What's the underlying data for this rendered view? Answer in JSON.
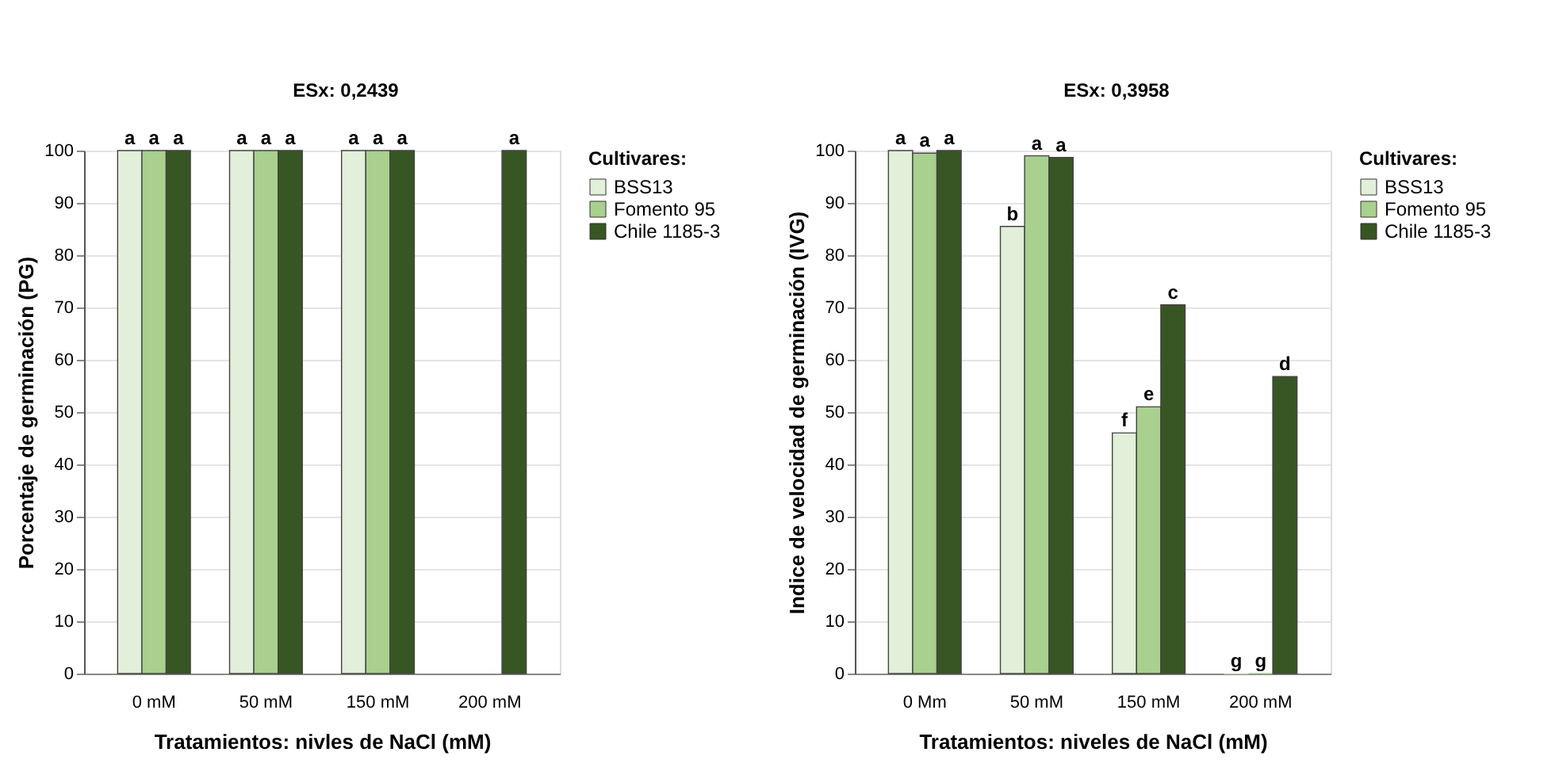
{
  "chart_data": [
    {
      "type": "bar",
      "ylabel": "Porcentaje de germinación  (PG)",
      "xlabel": "Tratamientos: nivles de NaCl (mM)",
      "legend_title": "Cultivares:",
      "legend": "top right",
      "grid": "y",
      "annotations": [
        "ESx: 0,2439"
      ],
      "categories": [
        "0 mM",
        "50 mM",
        "150 mM",
        "200 mM"
      ],
      "ylim": [
        0,
        100
      ],
      "yticks": [
        0,
        10,
        20,
        30,
        40,
        50,
        60,
        70,
        80,
        90,
        100
      ],
      "series": [
        {
          "name": "BSS13",
          "color": "#e2efd9",
          "values": [
            100,
            100,
            100,
            null
          ],
          "value_labels": [
            "a",
            "a",
            "a",
            null
          ]
        },
        {
          "name": "Fomento 95",
          "color": "#a9d08e",
          "values": [
            100,
            100,
            100,
            null
          ],
          "value_labels": [
            "a",
            "a",
            "a",
            null
          ]
        },
        {
          "name": "Chile 1185-3",
          "color": "#375623",
          "values": [
            100,
            100,
            100,
            100
          ],
          "value_labels": [
            "a",
            "a",
            "a",
            "a"
          ]
        }
      ]
    },
    {
      "type": "bar",
      "ylabel": "Indice de velocidad de germinación  (IVG)",
      "xlabel": "Tratamientos: niveles de NaCl (mM)",
      "legend_title": "Cultivares:",
      "legend": "top right",
      "grid": "y",
      "annotations": [
        "ESx: 0,3958"
      ],
      "categories": [
        "0 Mm",
        "50 mM",
        "150 mM",
        "200 mM"
      ],
      "ylim": [
        0,
        100
      ],
      "yticks": [
        0,
        10,
        20,
        30,
        40,
        50,
        60,
        70,
        80,
        90,
        100
      ],
      "series": [
        {
          "name": "BSS13",
          "color": "#e2efd9",
          "values": [
            100,
            85.5,
            46,
            0
          ],
          "value_labels": [
            "a",
            "b",
            "f",
            "g"
          ]
        },
        {
          "name": "Fomento 95",
          "color": "#a9d08e",
          "values": [
            99.5,
            99,
            51,
            0
          ],
          "value_labels": [
            "a",
            "a",
            "e",
            "g"
          ]
        },
        {
          "name": "Chile 1185-3",
          "color": "#375623",
          "values": [
            100,
            98.7,
            70.5,
            56.8
          ],
          "value_labels": [
            "a",
            "a",
            "c",
            "d"
          ]
        }
      ]
    }
  ]
}
